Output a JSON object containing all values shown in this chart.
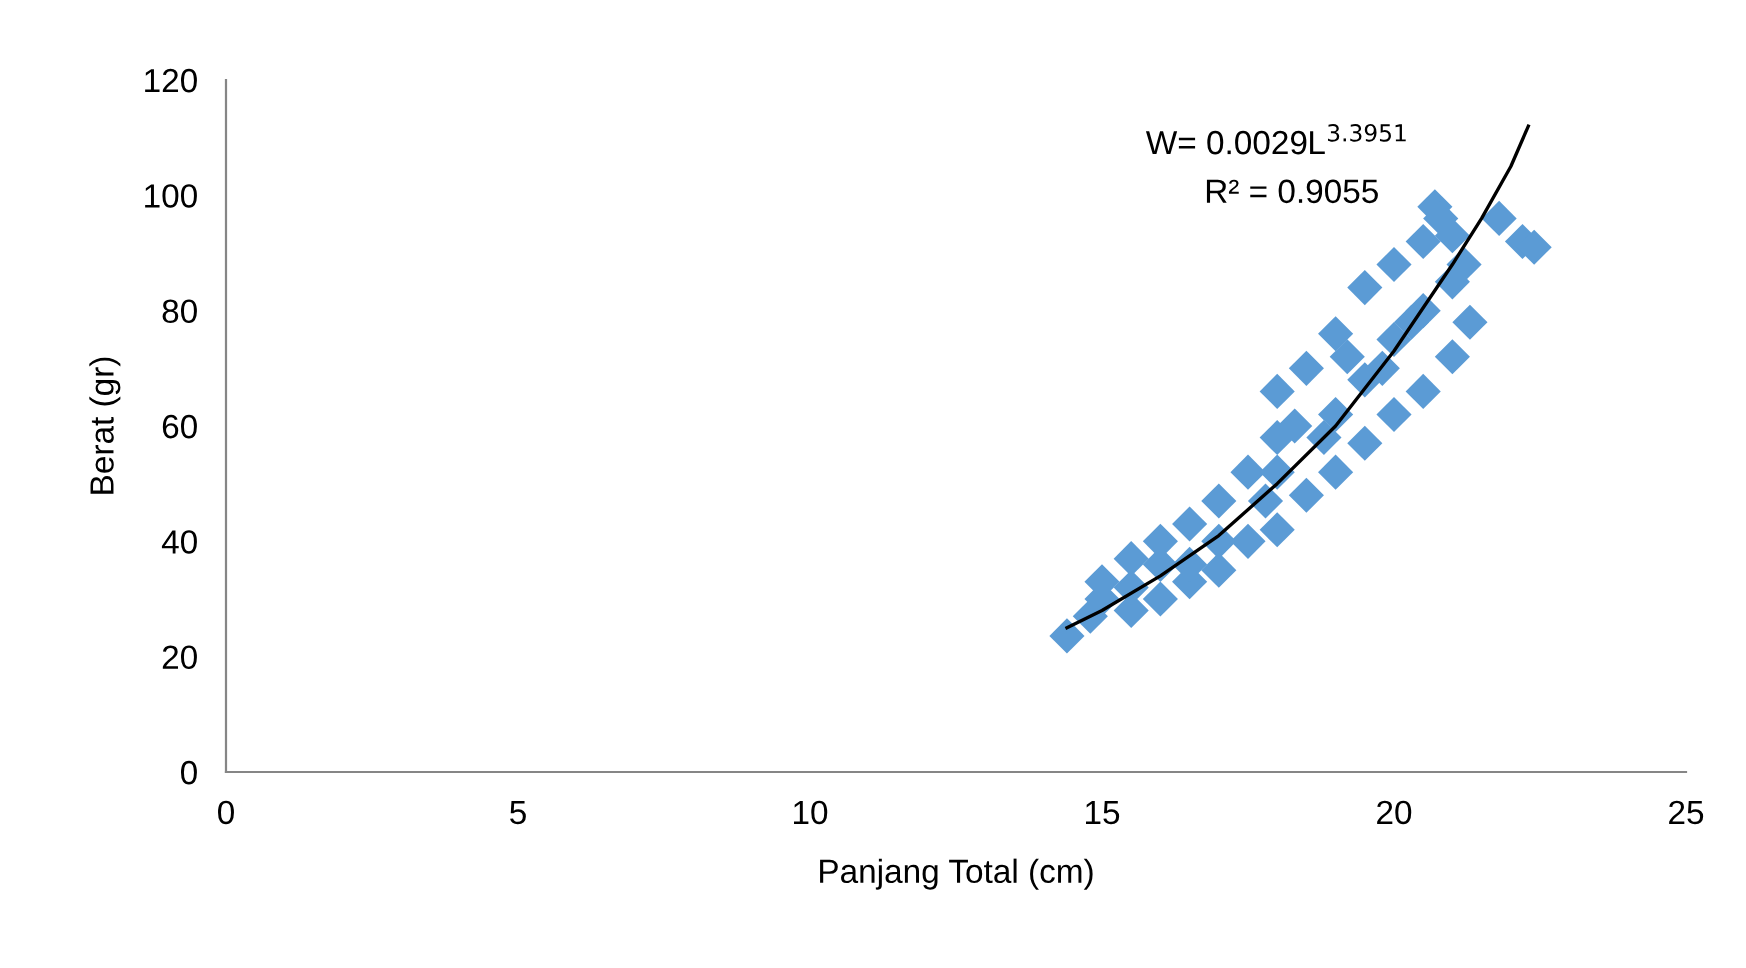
{
  "chart_data": {
    "type": "scatter",
    "xlabel": "Panjang Total (cm)",
    "ylabel": "Berat (gr)",
    "xlim": [
      0,
      25
    ],
    "xticks": [
      0,
      5,
      10,
      15,
      20,
      25
    ],
    "ylim": [
      0,
      120
    ],
    "yticks": [
      0,
      20,
      40,
      60,
      80,
      100,
      120
    ],
    "grid": false,
    "legend": false,
    "annotations": [
      "W= 0.0029L$^{3.3951}$",
      "R² = 0.9055"
    ],
    "series": [
      {
        "marker": "diamond",
        "color": "#5b9bd5",
        "x": [
          14.4,
          14.8,
          15,
          15,
          15.5,
          15.5,
          15.5,
          16,
          16,
          16,
          16.5,
          16.5,
          16.5,
          17,
          17,
          17,
          17.5,
          17.5,
          17.8,
          18,
          18,
          18,
          18,
          18.3,
          18.5,
          18.5,
          18.8,
          19,
          19,
          19,
          19.2,
          19.5,
          19.5,
          19.5,
          19.8,
          20,
          20,
          20,
          20.3,
          20.5,
          20.5,
          20.5,
          20.7,
          20.8,
          21,
          21,
          21,
          21.2,
          21.3,
          21.8,
          22.2,
          22.4
        ],
        "values": [
          23.6,
          27,
          30,
          33,
          28,
          32,
          37,
          30,
          36,
          40,
          33,
          43,
          36,
          35,
          40,
          47,
          40,
          52,
          47,
          42,
          52,
          58,
          66,
          60,
          48,
          70,
          58,
          52,
          62,
          76,
          72,
          57,
          68,
          84,
          70,
          62,
          75,
          88,
          78,
          66,
          80,
          92,
          98,
          96,
          72,
          85,
          93,
          88,
          78,
          96,
          92,
          91
        ]
      },
      {
        "type": "line",
        "marker": "none",
        "line_style": "solid",
        "color": "#000000",
        "x": [
          14.4,
          15,
          16,
          17,
          18,
          19,
          20,
          21,
          21.5,
          22,
          22.3
        ],
        "values": [
          25,
          28,
          34,
          41,
          50,
          60,
          73,
          88,
          96,
          105,
          112
        ]
      }
    ]
  }
}
